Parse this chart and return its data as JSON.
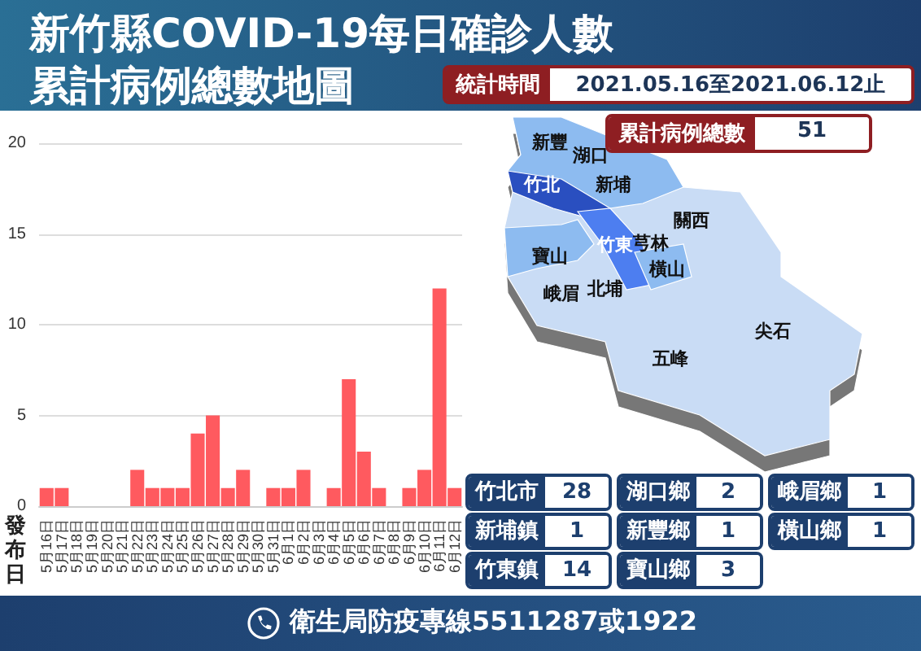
{
  "chart_data": {
    "type": "bar",
    "title": "新竹縣COVID-19每日確診人數",
    "subtitle": "累計病例總數地圖",
    "xlabel": "發布日",
    "categories": [
      "5月16日",
      "5月17日",
      "5月18日",
      "5月19日",
      "5月20日",
      "5月21日",
      "5月22日",
      "5月23日",
      "5月24日",
      "5月25日",
      "5月26日",
      "5月27日",
      "5月28日",
      "5月29日",
      "5月30日",
      "5月31日",
      "6月1日",
      "6月2日",
      "6月3日",
      "6月4日",
      "6月5日",
      "6月6日",
      "6月7日",
      "6月8日",
      "6月9日",
      "6月10日",
      "6月11日",
      "6月12日"
    ],
    "values": [
      1,
      1,
      0,
      0,
      0,
      0,
      2,
      1,
      1,
      1,
      4,
      5,
      1,
      2,
      0,
      1,
      1,
      2,
      0,
      1,
      7,
      3,
      1,
      0,
      1,
      2,
      12,
      1
    ],
    "color": "#ff5a5f",
    "ylim": [
      0,
      20
    ],
    "yticks": [
      0,
      5,
      10,
      15,
      20
    ],
    "grid": "y",
    "annotations": [
      "統計時間",
      "2021.05.16至2021.06.12止",
      "累計病例總數",
      "51",
      "新豐",
      "湖口",
      "竹北",
      "新埔",
      "關西",
      "竹東",
      "芎林",
      "橫山",
      "寶山",
      "峨眉",
      "北埔",
      "五峰",
      "尖石",
      "竹北市",
      "28",
      "湖口鄉",
      "2",
      "峨眉鄉",
      "1",
      "新埔鎮",
      "1",
      "新豐鄉",
      "1",
      "橫山鄉",
      "1",
      "竹東鎮",
      "14",
      "寶山鄉",
      "3",
      "衛生局防疫專線5511287或1922"
    ]
  }
}
